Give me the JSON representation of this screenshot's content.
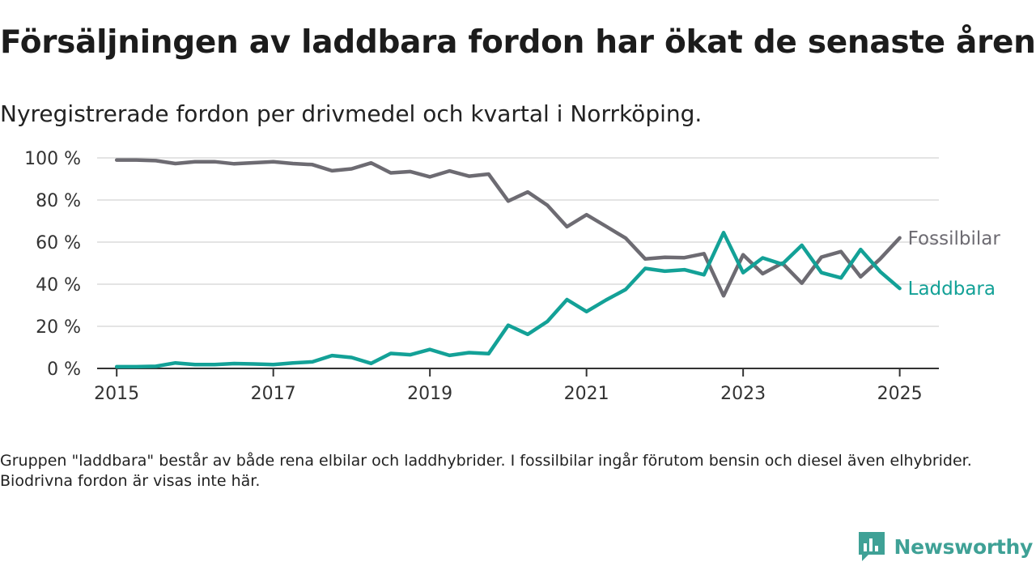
{
  "title": "Försäljningen av laddbara fordon har ökat de senaste åren",
  "subtitle": "Nyregistrerade fordon per drivmedel och kvartal i Norrköping.",
  "footnote": "Gruppen \"laddbara\" består av både rena elbilar och laddhybrider. I fossilbilar ingår förutom bensin och diesel även elhybrider. Biodrivna fordon är visas inte här.",
  "brand": {
    "name": "Newsworthy",
    "icon": "newsworthy-logo-icon"
  },
  "colors": {
    "fossil": "#6d6b72",
    "laddbara": "#13a197",
    "grid": "#dcdcdc",
    "axis": "#333333",
    "brand": "#3fa196"
  },
  "chart_data": {
    "type": "line",
    "x_start": 2015,
    "x_step": 0.25,
    "xlim": [
      2014.75,
      2025.5
    ],
    "ylim": [
      0,
      100
    ],
    "y_ticks": [
      0,
      20,
      40,
      60,
      80,
      100
    ],
    "y_tick_labels": [
      "0 %",
      "20 %",
      "40 %",
      "60 %",
      "80 %",
      "100 %"
    ],
    "x_ticks": [
      2015,
      2017,
      2019,
      2021,
      2023,
      2025
    ],
    "x_tick_labels": [
      "2015",
      "2017",
      "2019",
      "2021",
      "2023",
      "2025"
    ],
    "grid": true,
    "series": [
      {
        "name": "Fossilbilar",
        "color": "#6d6b72",
        "values": [
          99,
          99,
          98.7,
          97.3,
          98.2,
          98.2,
          97.2,
          97.7,
          98.2,
          97.3,
          96.8,
          93.9,
          94.8,
          97.6,
          92.9,
          93.5,
          91,
          93.8,
          91.3,
          92.3,
          79.5,
          83.8,
          77.5,
          67.3,
          73,
          67.5,
          61.9,
          52,
          52.8,
          52.6,
          54.5,
          34.5,
          54,
          45,
          50,
          40.5,
          52.9,
          55.5,
          43.5,
          52,
          62
        ]
      },
      {
        "name": "Laddbara",
        "color": "#13a197",
        "values": [
          0.8,
          0.8,
          1,
          2.6,
          1.8,
          1.8,
          2.3,
          2.1,
          1.8,
          2.6,
          3.1,
          6.1,
          5.2,
          2.4,
          7.1,
          6.5,
          9,
          6.2,
          7.5,
          7,
          20.5,
          16.2,
          22.3,
          32.7,
          27,
          32.5,
          37.5,
          47.5,
          46.2,
          46.9,
          44.5,
          64.5,
          45.5,
          52.5,
          49.5,
          58.5,
          45.5,
          43,
          56.5,
          46,
          38
        ]
      }
    ]
  }
}
